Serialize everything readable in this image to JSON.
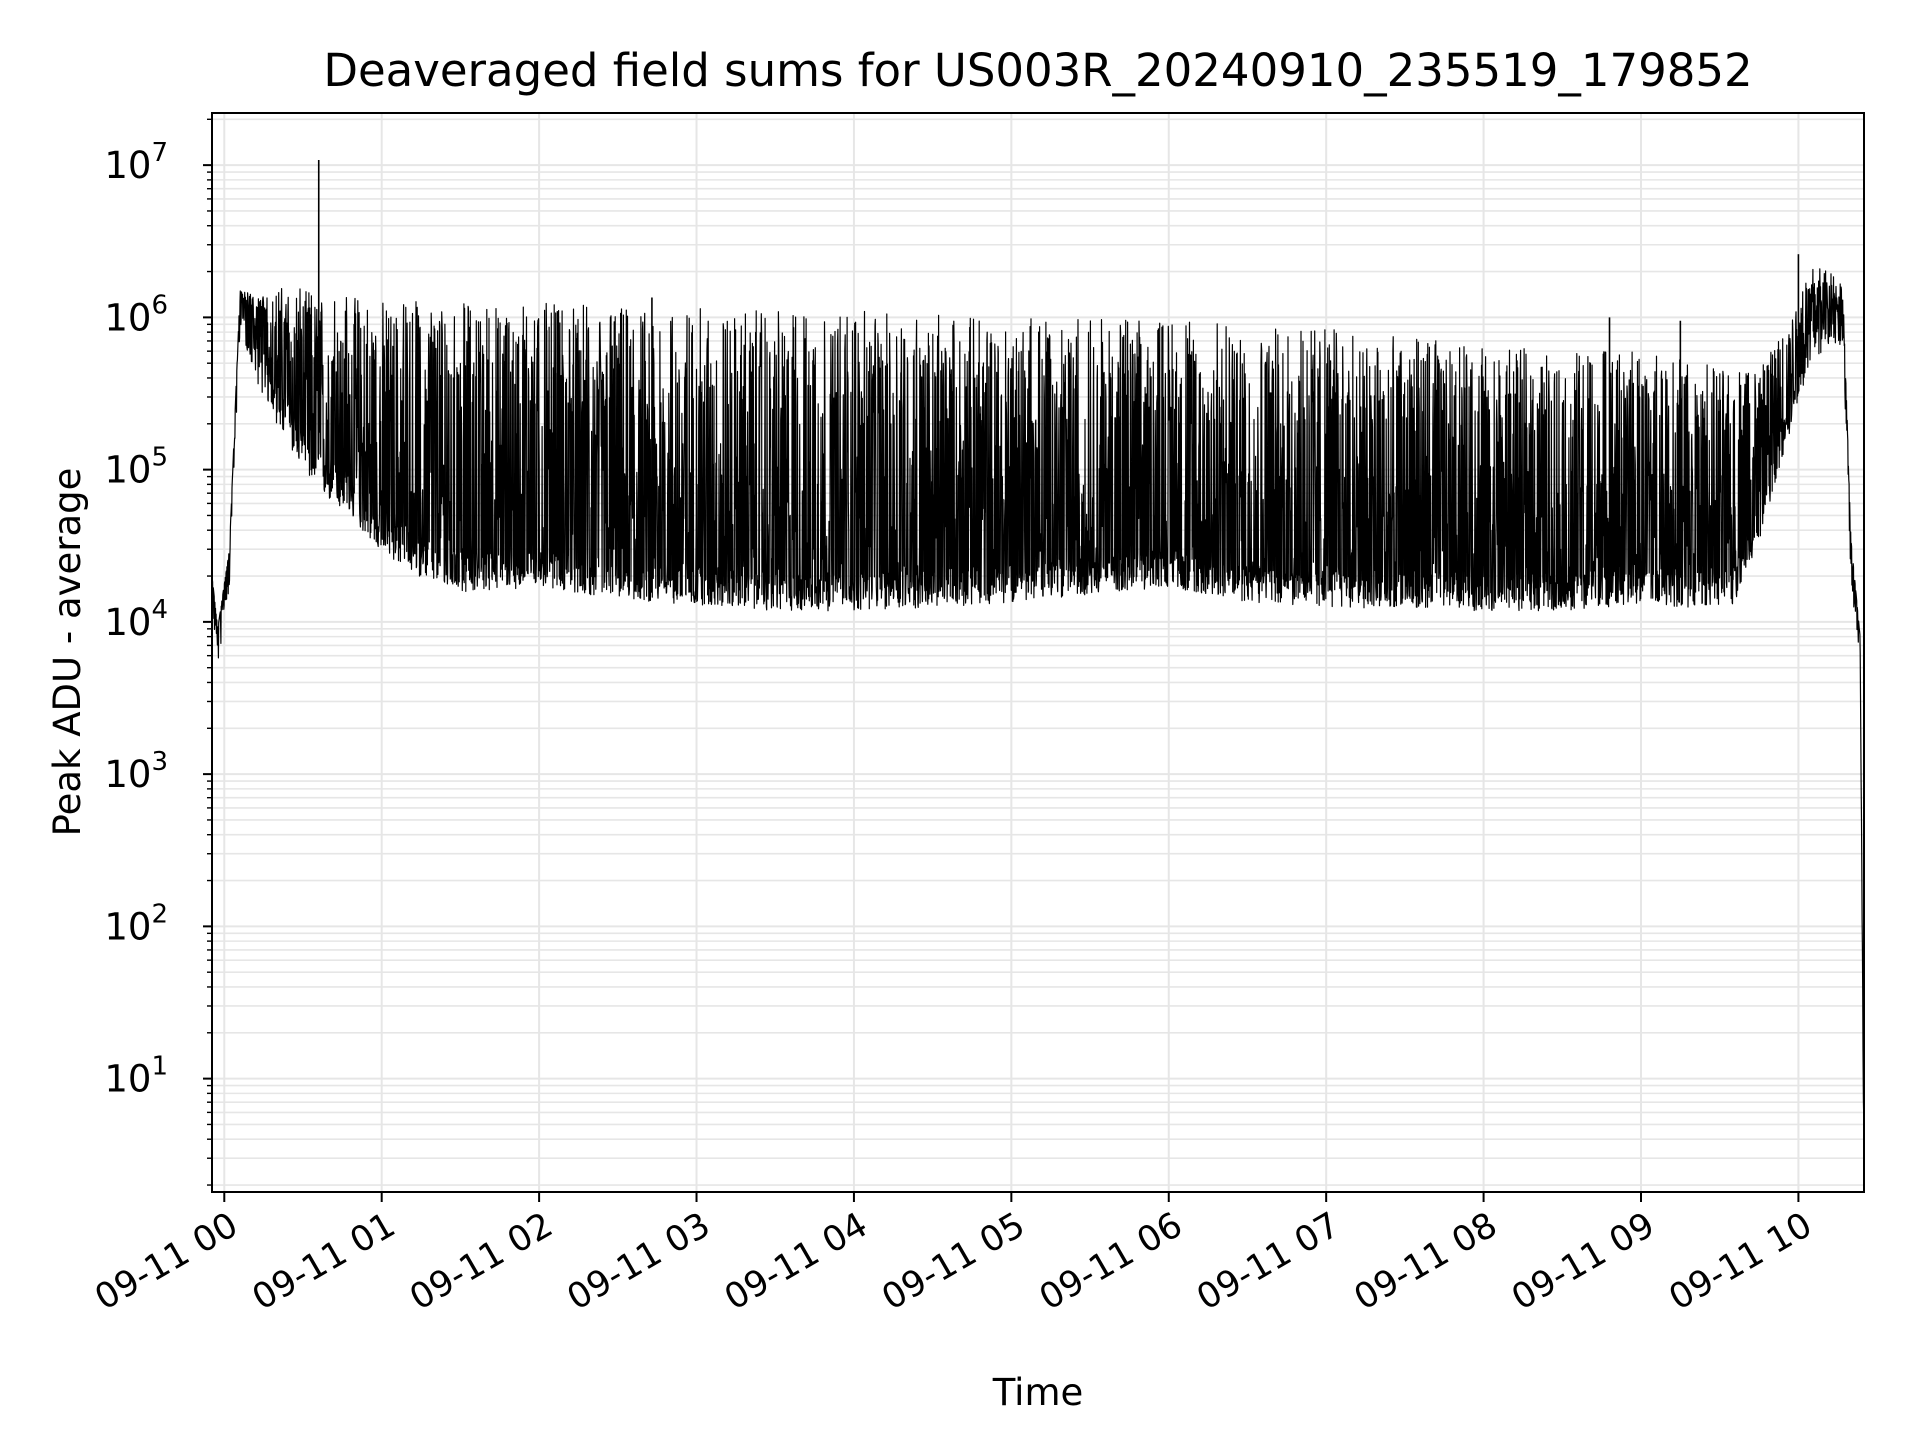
{
  "chart_data": {
    "type": "line",
    "title": "Deaveraged field sums for US003R_20240910_235519_179852",
    "xlabel": "Time",
    "ylabel": "Peak ADU - average",
    "yscale": "log",
    "ylim": [
      1.8,
      22000000
    ],
    "xlim": [
      "2024-09-10 23:55:19",
      "2024-09-11 10:25:00"
    ],
    "x_ticks": [
      "09-11 00",
      "09-11 01",
      "09-11 02",
      "09-11 03",
      "09-11 04",
      "09-11 05",
      "09-11 06",
      "09-11 07",
      "09-11 08",
      "09-11 09",
      "09-11 10"
    ],
    "x_tick_times": [
      "2024-09-11 00:00",
      "2024-09-11 01:00",
      "2024-09-11 02:00",
      "2024-09-11 03:00",
      "2024-09-11 04:00",
      "2024-09-11 05:00",
      "2024-09-11 06:00",
      "2024-09-11 07:00",
      "2024-09-11 08:00",
      "2024-09-11 09:00",
      "2024-09-11 10:00"
    ],
    "y_ticks": [
      {
        "value": 10,
        "base": "10",
        "exp": "1"
      },
      {
        "value": 100,
        "base": "10",
        "exp": "2"
      },
      {
        "value": 1000,
        "base": "10",
        "exp": "3"
      },
      {
        "value": 10000,
        "base": "10",
        "exp": "4"
      },
      {
        "value": 100000,
        "base": "10",
        "exp": "5"
      },
      {
        "value": 1000000,
        "base": "10",
        "exp": "6"
      },
      {
        "value": 10000000,
        "base": "10",
        "exp": "7"
      }
    ],
    "grid": true,
    "line_color": "#000000",
    "grid_color": "#e6e6e6",
    "series": [
      {
        "envelope": {
          "x": [
            "2024-09-10 23:55:19",
            "2024-09-10 23:57:30",
            "2024-09-11 00:02:00",
            "2024-09-11 00:06:00",
            "2024-09-11 00:12:00",
            "2024-09-11 00:20:00",
            "2024-09-11 00:35:00",
            "2024-09-11 00:50:00",
            "2024-09-11 01:00:00",
            "2024-09-11 01:15:00",
            "2024-09-11 01:30:00",
            "2024-09-11 02:00:00",
            "2024-09-11 02:30:00",
            "2024-09-11 03:00:00",
            "2024-09-11 03:30:00",
            "2024-09-11 04:00:00",
            "2024-09-11 04:30:00",
            "2024-09-11 05:00:00",
            "2024-09-11 05:30:00",
            "2024-09-11 06:00:00",
            "2024-09-11 06:30:00",
            "2024-09-11 07:00:00",
            "2024-09-11 07:30:00",
            "2024-09-11 08:00:00",
            "2024-09-11 08:30:00",
            "2024-09-11 09:00:00",
            "2024-09-11 09:20:00",
            "2024-09-11 09:35:00",
            "2024-09-11 09:45:00",
            "2024-09-11 09:55:00",
            "2024-09-11 10:05:00",
            "2024-09-11 10:12:00",
            "2024-09-11 10:17:00",
            "2024-09-11 10:20:00",
            "2024-09-11 10:23:30",
            "2024-09-11 10:25:00"
          ],
          "baseline": [
            20000,
            9000,
            30000,
            1500000,
            700000,
            350000,
            130000,
            80000,
            50000,
            35000,
            28000,
            30000,
            25000,
            23000,
            21000,
            21000,
            22000,
            24000,
            27000,
            30000,
            24000,
            22000,
            22000,
            21000,
            21000,
            23000,
            22000,
            22000,
            60000,
            250000,
            900000,
            1200000,
            1100000,
            35000,
            8000,
            3
          ],
          "peak": [
            20000,
            9000,
            30000,
            1500000,
            1400000,
            1600000,
            1500000,
            1400000,
            1350000,
            1300000,
            1250000,
            1250000,
            1200000,
            1150000,
            1100000,
            1100000,
            1050000,
            1050000,
            1000000,
            950000,
            900000,
            850000,
            750000,
            650000,
            600000,
            600000,
            550000,
            500000,
            500000,
            900000,
            2200000,
            2000000,
            1600000,
            35000,
            8000,
            3
          ]
        },
        "spikes": [
          {
            "x": "2024-09-11 00:36:00",
            "y": 10800000
          },
          {
            "x": "2024-09-11 02:07:00",
            "y": 1100000
          },
          {
            "x": "2024-09-11 02:43:00",
            "y": 1350000
          },
          {
            "x": "2024-09-11 08:48:00",
            "y": 1000000
          },
          {
            "x": "2024-09-11 09:15:00",
            "y": 950000
          },
          {
            "x": "2024-09-11 10:00:00",
            "y": 2600000
          }
        ]
      }
    ]
  }
}
